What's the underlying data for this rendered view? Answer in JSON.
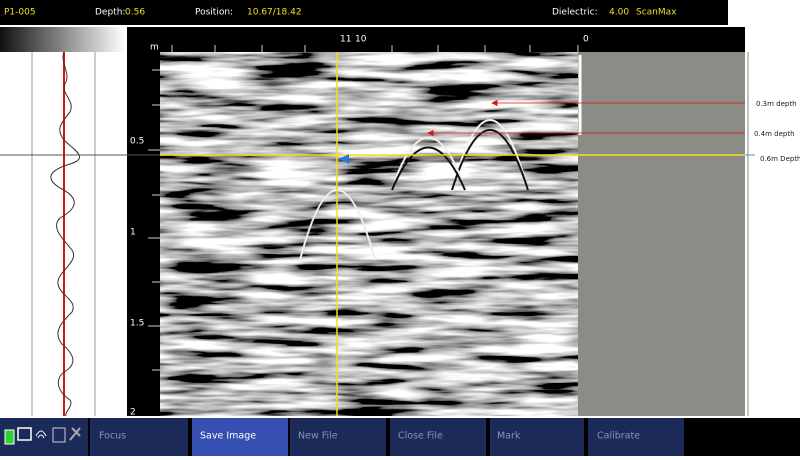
{
  "header": {
    "file": "P1-005",
    "depth_label": "Depth:",
    "depth": "0.56",
    "position_label": "Position:",
    "position": "10.67/18.42",
    "dielectric_label": "Dielectric:",
    "dielectric": "4.00",
    "mode": "ScanMax"
  },
  "depth_scale": {
    "unit": "m",
    "labels": [
      "0.5",
      "1",
      "1.5",
      "2"
    ]
  },
  "position_scale": {
    "labels": [
      "11",
      "10",
      "0"
    ]
  },
  "annotations": [
    "0.3m depth",
    "0.4m depth",
    "0.6m Depth"
  ],
  "toolbar": {
    "buttons": [
      "Focus",
      "Save Image",
      "New File",
      "Close File",
      "Mark",
      "Calibrate"
    ]
  }
}
